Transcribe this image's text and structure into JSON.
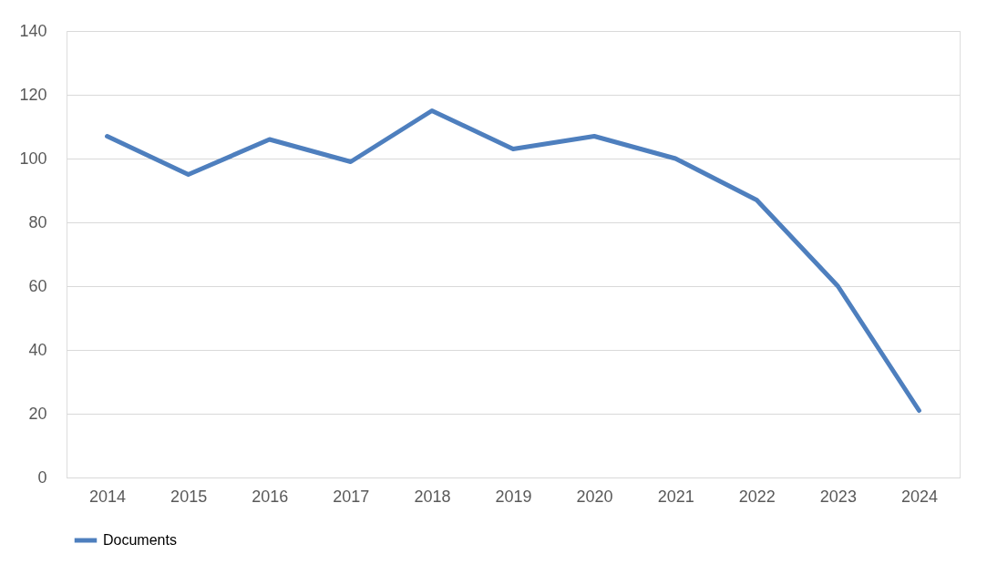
{
  "chart_data": {
    "type": "line",
    "categories": [
      "2014",
      "2015",
      "2016",
      "2017",
      "2018",
      "2019",
      "2020",
      "2021",
      "2022",
      "2023",
      "2024"
    ],
    "series": [
      {
        "name": "Documents",
        "color": "#4e7fbe",
        "values": [
          107,
          95,
          106,
          99,
          115,
          103,
          107,
          100,
          87,
          60,
          21
        ]
      }
    ],
    "ylim": [
      0,
      140
    ],
    "yticks": [
      0,
      20,
      40,
      60,
      80,
      100,
      120,
      140
    ],
    "grid": "y",
    "legend": "bottom",
    "marker": "none",
    "line_style": "solid"
  }
}
